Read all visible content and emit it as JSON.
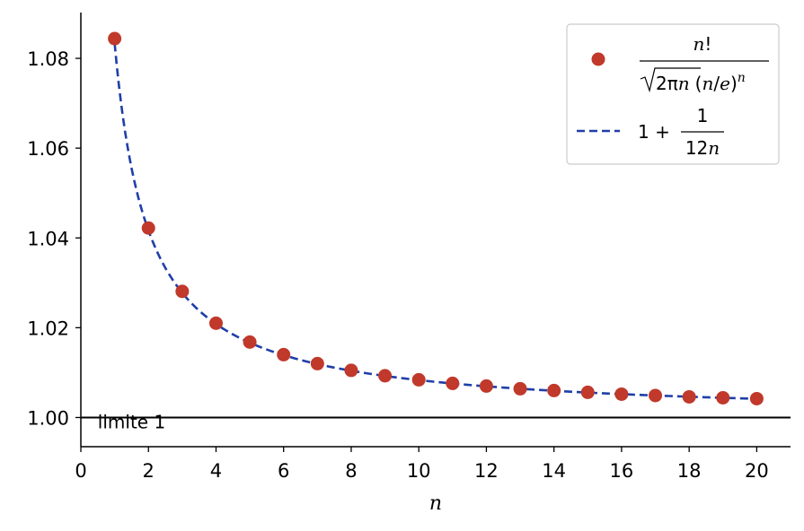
{
  "chart_data": {
    "type": "scatter",
    "xlabel": "n",
    "xlim": [
      0,
      21
    ],
    "ylim": [
      0.9935,
      1.0902
    ],
    "x_ticks": [
      "0",
      "2",
      "4",
      "6",
      "8",
      "10",
      "12",
      "14",
      "16",
      "18",
      "20"
    ],
    "y_ticks": [
      "1.00",
      "1.02",
      "1.04",
      "1.06",
      "1.08"
    ],
    "grid": false,
    "legend_position": "top-right",
    "series": [
      {
        "name": "n! / (√(2πn) (n/e)^n)",
        "style": "markers",
        "color": "#c0392b",
        "x": [
          1,
          2,
          3,
          4,
          5,
          6,
          7,
          8,
          9,
          10,
          11,
          12,
          13,
          14,
          15,
          16,
          17,
          18,
          19,
          20
        ],
        "values": [
          1.0844,
          1.0422,
          1.0281,
          1.021,
          1.0168,
          1.014,
          1.012,
          1.0105,
          1.0093,
          1.0084,
          1.0076,
          1.007,
          1.0064,
          1.006,
          1.0056,
          1.0052,
          1.0049,
          1.0046,
          1.0044,
          1.0042
        ]
      },
      {
        "name": "1 + 1/(12n)",
        "style": "dashed-line",
        "color": "#1f3fa8",
        "x_range": [
          1,
          20
        ]
      }
    ],
    "reference_line": {
      "y": 1.0,
      "label": "limite 1",
      "color": "#000000"
    }
  },
  "legend": {
    "item1": {
      "numerator_var": "n",
      "numerator_sym": "!",
      "sqrt_text": "2π",
      "sqrt_var": "n",
      "paren_var_n": "n",
      "paren_var_e": "e",
      "exp_var": "n"
    },
    "item2": {
      "prefix": "1 +",
      "numerator": "1",
      "denominator_num": "12",
      "denominator_var": "n"
    }
  }
}
